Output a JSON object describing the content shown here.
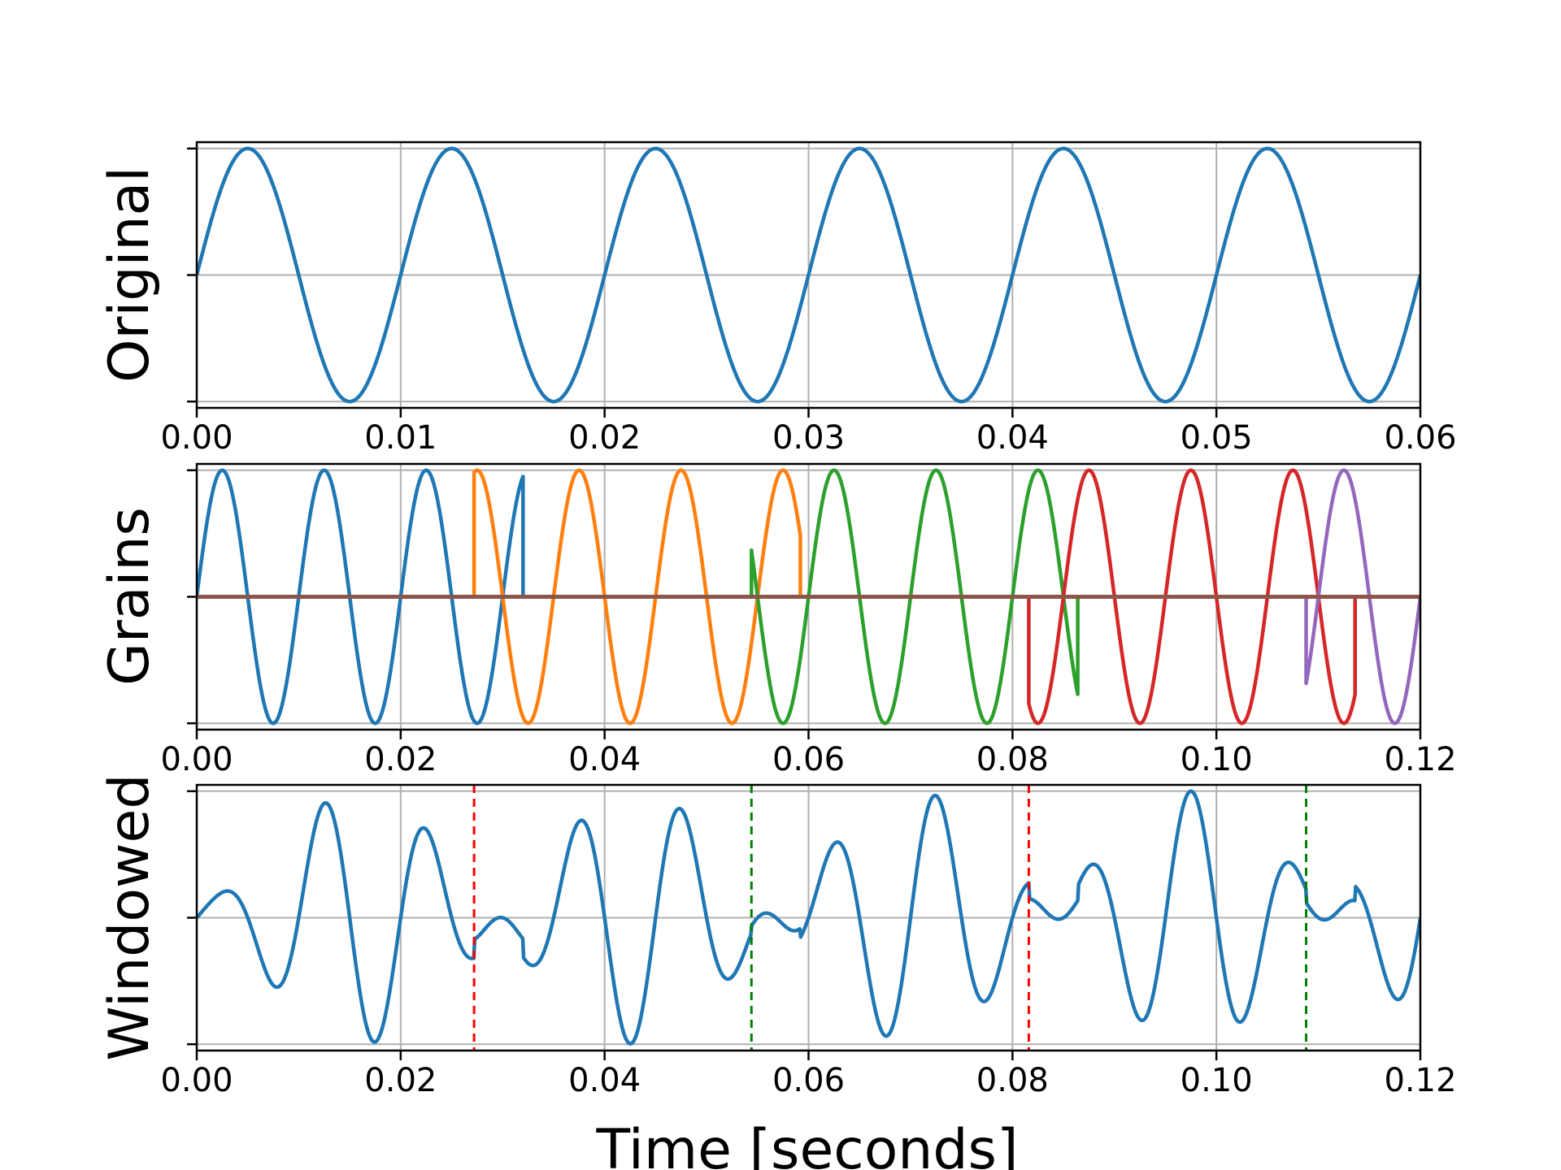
{
  "chart_data": [
    {
      "type": "line",
      "ylabel": "Original",
      "xlabel": "",
      "xlim": [
        0,
        0.06
      ],
      "ylim": [
        -1.05,
        1.05
      ],
      "xticks": [
        0.0,
        0.01,
        0.02,
        0.03,
        0.04,
        0.05,
        0.06
      ],
      "xtick_labels": [
        "0.00",
        "0.01",
        "0.02",
        "0.03",
        "0.04",
        "0.05",
        "0.06"
      ],
      "yticks": [
        -1,
        0,
        1
      ],
      "grid": true,
      "series": [
        {
          "color": "#1f77b4",
          "signal": "sine",
          "frequency_hz": 100,
          "amplitude": 1,
          "x_start": 0,
          "x_end": 0.06
        }
      ]
    },
    {
      "type": "line",
      "ylabel": "Grains",
      "xlabel": "",
      "xlim": [
        0,
        0.12
      ],
      "ylim": [
        -1.05,
        1.05
      ],
      "xticks": [
        0.0,
        0.02,
        0.04,
        0.06,
        0.08,
        0.1,
        0.12
      ],
      "xtick_labels": [
        "0.00",
        "0.02",
        "0.04",
        "0.06",
        "0.08",
        "0.10",
        "0.12"
      ],
      "yticks": [
        -1,
        0,
        1
      ],
      "grid": true,
      "series": [
        {
          "color": "#1f77b4",
          "signal": "grain",
          "frequency_hz": 100,
          "amplitude": 1,
          "x_start": 0.0,
          "x_end": 0.032,
          "source_offset": 0.0
        },
        {
          "color": "#ff7f0e",
          "signal": "grain",
          "frequency_hz": 100,
          "amplitude": 1,
          "x_start": 0.0272,
          "x_end": 0.0592,
          "source_offset": 0.0022
        },
        {
          "color": "#2ca02c",
          "signal": "grain",
          "frequency_hz": 100,
          "amplitude": 1,
          "x_start": 0.0544,
          "x_end": 0.0864,
          "source_offset": 0.0044
        },
        {
          "color": "#d62728",
          "signal": "grain",
          "frequency_hz": 100,
          "amplitude": 1,
          "x_start": 0.0816,
          "x_end": 0.1136,
          "source_offset": 0.0066
        },
        {
          "color": "#9467bd",
          "signal": "grain",
          "frequency_hz": 100,
          "amplitude": 1,
          "x_start": 0.1088,
          "x_end": 0.12,
          "source_offset": 0.0088
        },
        {
          "color": "#8c564b",
          "signal": "zero",
          "x_start": 0.0,
          "x_end": 0.12
        }
      ]
    },
    {
      "type": "line",
      "ylabel": "Windowed",
      "xlabel": "Time [seconds]",
      "xlim": [
        0,
        0.12
      ],
      "ylim": [
        -1.05,
        1.05
      ],
      "xticks": [
        0.0,
        0.02,
        0.04,
        0.06,
        0.08,
        0.1,
        0.12
      ],
      "xtick_labels": [
        "0.00",
        "0.02",
        "0.04",
        "0.06",
        "0.08",
        "0.10",
        "0.12"
      ],
      "yticks": [
        -1,
        0,
        1
      ],
      "grid": true,
      "series": [
        {
          "color": "#1f77b4",
          "signal": "windowed_sum",
          "frequency_hz": 100,
          "amplitude": 1,
          "x_start": 0.0,
          "x_end": 0.12
        }
      ],
      "vlines": [
        {
          "x": 0.0272,
          "color": "#ff0000",
          "style": "dashed"
        },
        {
          "x": 0.0544,
          "color": "#008000",
          "style": "dashed"
        },
        {
          "x": 0.0816,
          "color": "#ff0000",
          "style": "dashed"
        },
        {
          "x": 0.1088,
          "color": "#008000",
          "style": "dashed"
        }
      ]
    }
  ],
  "colors": {
    "grid": "#b0b0b0",
    "axes": "#000000"
  }
}
